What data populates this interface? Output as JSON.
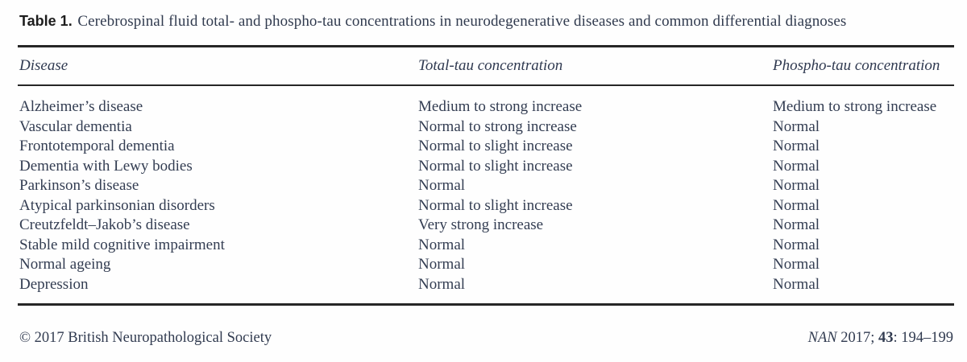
{
  "table": {
    "label": "Table 1.",
    "caption": "Cerebrospinal fluid total- and phospho-tau concentrations in neurodegenerative diseases and common differential diagnoses",
    "columns": [
      "Disease",
      "Total-tau concentration",
      "Phospho-tau concentration"
    ],
    "rows": [
      {
        "disease": "Alzheimer’s disease",
        "total_tau": "Medium to strong increase",
        "phospho_tau": "Medium to strong increase"
      },
      {
        "disease": "Vascular dementia",
        "total_tau": "Normal to strong increase",
        "phospho_tau": "Normal"
      },
      {
        "disease": "Frontotemporal dementia",
        "total_tau": "Normal to slight increase",
        "phospho_tau": "Normal"
      },
      {
        "disease": "Dementia with Lewy bodies",
        "total_tau": "Normal to slight increase",
        "phospho_tau": "Normal"
      },
      {
        "disease": "Parkinson’s disease",
        "total_tau": "Normal",
        "phospho_tau": "Normal"
      },
      {
        "disease": "Atypical parkinsonian disorders",
        "total_tau": "Normal to slight increase",
        "phospho_tau": "Normal"
      },
      {
        "disease": "Creutzfeldt–Jakob’s disease",
        "total_tau": "Very strong increase",
        "phospho_tau": "Normal"
      },
      {
        "disease": "Stable mild cognitive impairment",
        "total_tau": "Normal",
        "phospho_tau": "Normal"
      },
      {
        "disease": "Normal ageing",
        "total_tau": "Normal",
        "phospho_tau": "Normal"
      },
      {
        "disease": "Depression",
        "total_tau": "Normal",
        "phospho_tau": "Normal"
      }
    ]
  },
  "footer": {
    "copyright": "© 2017 British Neuropathological Society",
    "journal_abbrev": "NAN",
    "year": " 2017; ",
    "volume": "43",
    "pages": ": 194–199"
  }
}
